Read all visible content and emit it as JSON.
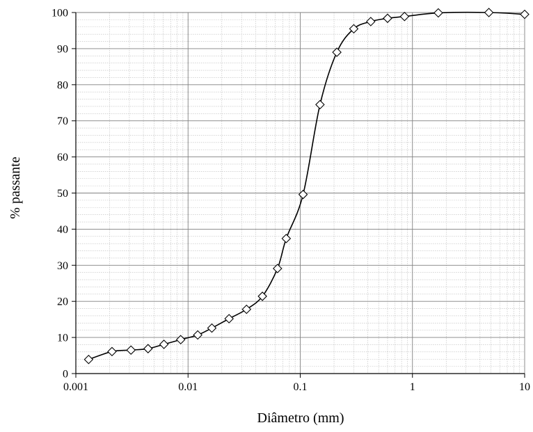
{
  "chart_data": {
    "type": "scatter",
    "title": "",
    "xlabel": "Diâmetro (mm)",
    "ylabel": "% passante",
    "xscale": "log",
    "xlim": [
      0.001,
      10
    ],
    "ylim": [
      0,
      100
    ],
    "x_ticks": [
      {
        "value": 0.001,
        "label": "0.001"
      },
      {
        "value": 0.01,
        "label": "0.01"
      },
      {
        "value": 0.1,
        "label": "0.1"
      },
      {
        "value": 1,
        "label": "1"
      },
      {
        "value": 10,
        "label": "10"
      }
    ],
    "y_ticks": [
      {
        "value": 0,
        "label": "0"
      },
      {
        "value": 10,
        "label": "10"
      },
      {
        "value": 20,
        "label": "20"
      },
      {
        "value": 30,
        "label": "30"
      },
      {
        "value": 40,
        "label": "40"
      },
      {
        "value": 50,
        "label": "50"
      },
      {
        "value": 60,
        "label": "60"
      },
      {
        "value": 70,
        "label": "70"
      },
      {
        "value": 80,
        "label": "80"
      },
      {
        "value": 90,
        "label": "90"
      },
      {
        "value": 100,
        "label": "100"
      }
    ],
    "grid": true,
    "minor_grid": true,
    "marker": "diamond-open",
    "line_color": "#000000",
    "series": [
      {
        "x": [
          0.0013,
          0.0021,
          0.0031,
          0.0044,
          0.0061,
          0.0086,
          0.0122,
          0.0163,
          0.0232,
          0.0332,
          0.046,
          0.0627,
          0.075,
          0.106,
          0.15,
          0.212,
          0.3,
          0.425,
          0.6,
          0.85,
          1.7,
          4.8,
          10
        ],
        "y": [
          3.9,
          6.1,
          6.5,
          6.9,
          8.1,
          9.4,
          10.7,
          12.6,
          15.2,
          17.8,
          21.4,
          29.1,
          37.4,
          49.6,
          74.5,
          89.0,
          95.5,
          97.5,
          98.4,
          98.9,
          99.9,
          100,
          99.5
        ]
      }
    ]
  }
}
